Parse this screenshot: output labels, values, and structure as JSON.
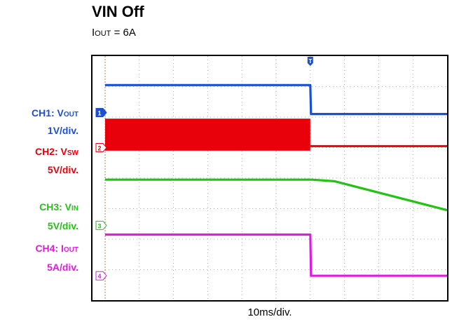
{
  "title": "VIN Off",
  "subtitle": {
    "prefix": "I",
    "sub": "OUT",
    "suffix": " = 6A"
  },
  "x_scale": "10ms/div.",
  "channels": [
    {
      "id": "ch1",
      "name_prefix": "CH1: V",
      "name_sub": "OUT",
      "scale": "1V/div.",
      "marker": "1",
      "color": "#1a4fd6"
    },
    {
      "id": "ch2",
      "name_prefix": "CH2: V",
      "name_sub": "SW",
      "scale": "5V/div.",
      "marker": "2",
      "color": "#e8000b"
    },
    {
      "id": "ch3",
      "name_prefix": "CH3: V",
      "name_sub": "IN",
      "scale": "5V/div.",
      "marker": "3",
      "color": "#22c414"
    },
    {
      "id": "ch4",
      "name_prefix": "CH4: I",
      "name_sub": "OUT",
      "scale": "5A/div.",
      "marker": "4",
      "color": "#e11be0"
    }
  ],
  "trigger_marker": "T",
  "chart_data": {
    "type": "line",
    "x_unit": "div",
    "y_unit": "div",
    "xlim": [
      0,
      10
    ],
    "ylim": [
      0,
      8
    ],
    "grid": true,
    "series": [
      {
        "name": "CH1: VOUT",
        "x": [
          0,
          6.0,
          6.02,
          10
        ],
        "y": [
          7.05,
          7.05,
          6.1,
          6.1
        ]
      },
      {
        "name": "CH2: VSW",
        "band": true,
        "x": [
          0,
          6.0
        ],
        "y_low": [
          4.9,
          4.9
        ],
        "y_high": [
          5.95,
          5.95
        ],
        "x_after": [
          6.0,
          10
        ],
        "y_after": [
          5.05,
          5.05
        ]
      },
      {
        "name": "CH3: VIN",
        "x": [
          0,
          6.05,
          6.7,
          10
        ],
        "y": [
          3.95,
          3.95,
          3.9,
          2.95
        ]
      },
      {
        "name": "CH4: IOUT",
        "x": [
          0,
          6.0,
          6.02,
          10
        ],
        "y": [
          2.15,
          2.15,
          0.8,
          0.8
        ]
      }
    ],
    "ground_levels_div": {
      "ch1": 6.15,
      "ch2": 5.0,
      "ch3": 2.45,
      "ch4": 0.8
    }
  }
}
